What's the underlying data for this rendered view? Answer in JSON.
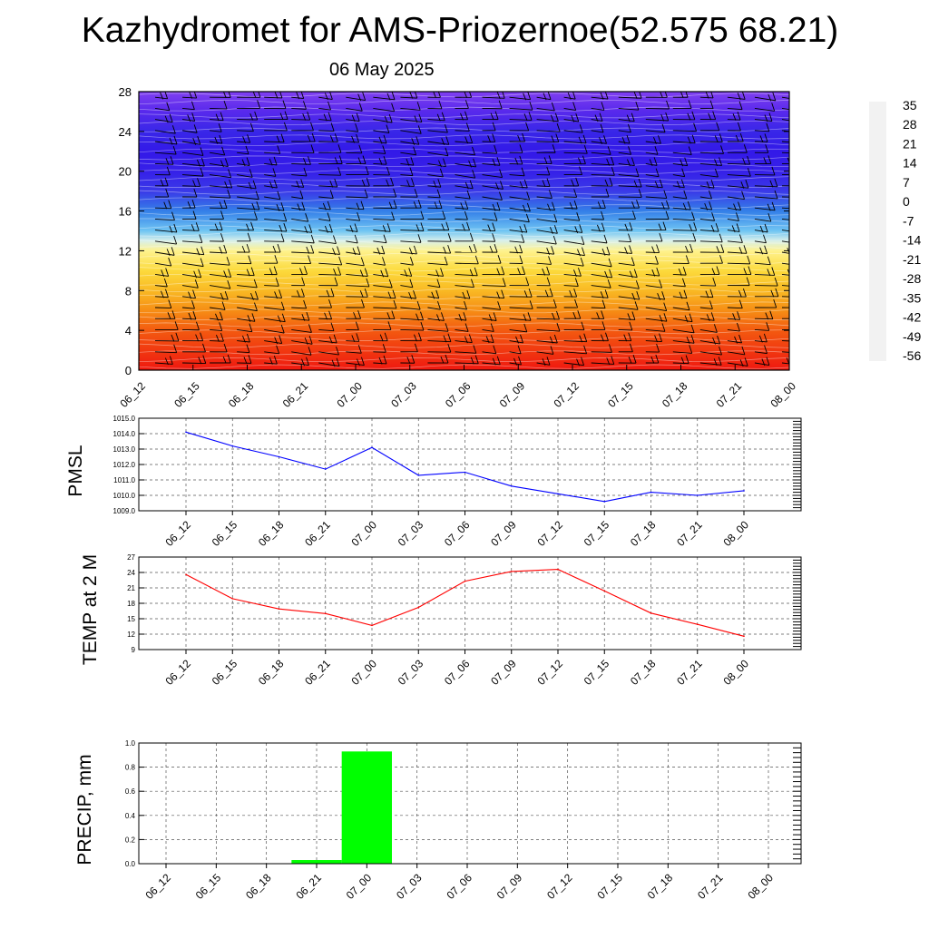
{
  "title": "Kazhydromet for AMS-Priozernoe(52.575 68.21)",
  "subtitle": "06 May 2025",
  "chart_data": [
    {
      "type": "heatmap",
      "name": "upper-air temperature and wind",
      "x_categories": [
        "06_12",
        "06_15",
        "06_18",
        "06_21",
        "07_00",
        "07_03",
        "07_06",
        "07_09",
        "07_12",
        "07_15",
        "07_18",
        "07_21",
        "08_00"
      ],
      "y_ticks": [
        "0",
        "4",
        "8",
        "12",
        "16",
        "20",
        "24",
        "28"
      ],
      "ylim": [
        0,
        28
      ],
      "colorbar_labels": [
        "35",
        "28",
        "21",
        "14",
        "7",
        "0",
        "-7",
        "-14",
        "-21",
        "-28",
        "-35",
        "-42",
        "-49",
        "-56"
      ],
      "colorbar_range": [
        -60,
        38
      ],
      "color_stops": [
        {
          "v": 38,
          "c": "#f2f2f2"
        },
        {
          "v": 34,
          "c": "#e86a6a"
        },
        {
          "v": 26,
          "c": "#ee1010"
        },
        {
          "v": 17,
          "c": "#f35a10"
        },
        {
          "v": 8,
          "c": "#f8a818"
        },
        {
          "v": -2,
          "c": "#fce040"
        },
        {
          "v": -10,
          "c": "#fff8a8"
        },
        {
          "v": -15,
          "c": "#cfeefa"
        },
        {
          "v": -22,
          "c": "#4ab4f0"
        },
        {
          "v": -32,
          "c": "#2e72e6"
        },
        {
          "v": -44,
          "c": "#3c2ee8"
        },
        {
          "v": -52,
          "c": "#3012e8"
        },
        {
          "v": -60,
          "c": "#8040f0"
        }
      ],
      "temperature_profile": [
        {
          "level": 0,
          "value": 25
        },
        {
          "level": 2,
          "value": 21
        },
        {
          "level": 4,
          "value": 17
        },
        {
          "level": 6,
          "value": 11
        },
        {
          "level": 8,
          "value": 5
        },
        {
          "level": 10,
          "value": -1
        },
        {
          "level": 12,
          "value": -8
        },
        {
          "level": 13,
          "value": -14
        },
        {
          "level": 14,
          "value": -20
        },
        {
          "level": 16,
          "value": -30
        },
        {
          "level": 18,
          "value": -42
        },
        {
          "level": 20,
          "value": -48
        },
        {
          "level": 22,
          "value": -50
        },
        {
          "level": 24,
          "value": -46
        },
        {
          "level": 26,
          "value": -56
        },
        {
          "level": 28,
          "value": -60
        }
      ],
      "overlay": "wind barbs"
    },
    {
      "type": "line",
      "ylabel": "PMSL",
      "categories": [
        "06_12",
        "06_15",
        "06_18",
        "06_21",
        "07_00",
        "07_03",
        "07_06",
        "07_09",
        "07_12",
        "07_15",
        "07_18",
        "07_21",
        "08_00"
      ],
      "values": [
        1014.1,
        1013.2,
        1012.5,
        1011.7,
        1013.1,
        1011.3,
        1011.5,
        1010.6,
        1010.1,
        1009.6,
        1010.2,
        1010.0,
        1010.3
      ],
      "y_ticks": [
        "1009.0",
        "1010.0",
        "1011.0",
        "1012.0",
        "1013.0",
        "1014.0",
        "1015.0"
      ],
      "ylim": [
        1009.0,
        1015.0
      ],
      "color": "#0000ff",
      "grid": true
    },
    {
      "type": "line",
      "ylabel": "TEMP at 2 M",
      "categories": [
        "06_12",
        "06_15",
        "06_18",
        "06_21",
        "07_00",
        "07_03",
        "07_06",
        "07_09",
        "07_12",
        "07_15",
        "07_18",
        "07_21",
        "08_00"
      ],
      "values": [
        23.6,
        18.9,
        16.9,
        16.0,
        13.7,
        17.2,
        22.3,
        24.2,
        24.6,
        20.4,
        16.1,
        13.9,
        11.6
      ],
      "y_ticks": [
        "9",
        "12",
        "15",
        "18",
        "21",
        "24",
        "27"
      ],
      "ylim": [
        9,
        27
      ],
      "color": "#ff0000",
      "grid": true
    },
    {
      "type": "bar",
      "ylabel": "PRECIP, mm",
      "categories": [
        "06_12",
        "06_15",
        "06_18",
        "06_21",
        "07_00",
        "07_03",
        "07_06",
        "07_09",
        "07_12",
        "07_15",
        "07_18",
        "07_21",
        "08_00"
      ],
      "values": [
        0,
        0,
        0,
        0.03,
        0.93,
        0,
        0,
        0,
        0,
        0,
        0,
        0,
        0
      ],
      "y_ticks": [
        "0.0",
        "0.2",
        "0.4",
        "0.6",
        "0.8",
        "1.0"
      ],
      "ylim": [
        0,
        1.0
      ],
      "color": "#00ff00",
      "grid": true
    }
  ]
}
